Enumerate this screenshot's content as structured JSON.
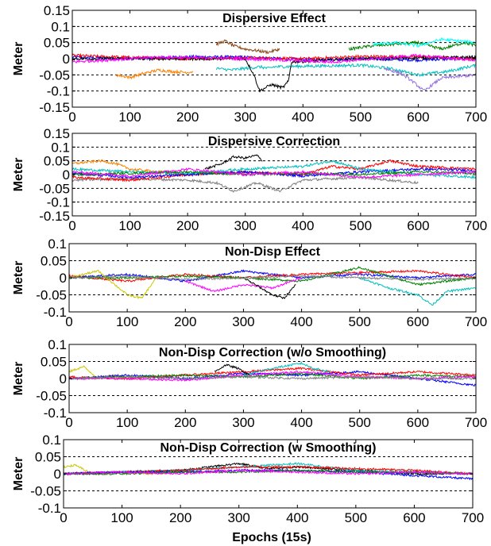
{
  "figure": {
    "xlabel": "Epochs (15s)"
  },
  "chart_data": [
    {
      "type": "line",
      "title": "Dispersive Effect",
      "ylabel": "Meter",
      "xlabel": "",
      "xlim": [
        0,
        700
      ],
      "ylim": [
        -0.15,
        0.15
      ],
      "xticks": [
        0,
        100,
        200,
        300,
        400,
        500,
        600,
        700
      ],
      "yticks": [
        -0.15,
        -0.1,
        -0.05,
        0,
        0.05,
        0.1,
        0.15
      ],
      "ytick_labels": [
        "-0.15",
        "-0.1",
        "-0.05",
        "0",
        "0.05",
        "0.1",
        "0.15"
      ],
      "dashed_y": [
        -0.1,
        -0.05,
        0.05,
        0.1
      ],
      "grid": "dashed horizontal lines",
      "series": [
        {
          "color": "#0000ff",
          "x": [
            0,
            100,
            200,
            300,
            400,
            500,
            600,
            700
          ],
          "y": [
            0.005,
            0.0,
            0.006,
            0.005,
            -0.003,
            0.0,
            -0.004,
            0.002
          ]
        },
        {
          "color": "#ff0000",
          "x": [
            0,
            100,
            200,
            300,
            400,
            500,
            600,
            700
          ],
          "y": [
            0.01,
            0.004,
            0.0,
            0.003,
            0.0,
            0.007,
            0.006,
            0.0
          ]
        },
        {
          "color": "#ff8000",
          "x": [
            75,
            100,
            125,
            150,
            175,
            200,
            210
          ],
          "y": [
            -0.05,
            -0.058,
            -0.045,
            -0.035,
            -0.04,
            -0.042,
            -0.04
          ]
        },
        {
          "color": "#8b4513",
          "x": [
            250,
            265,
            280,
            300,
            320,
            340,
            360
          ],
          "y": [
            0.045,
            0.055,
            0.04,
            0.03,
            0.025,
            0.02,
            0.03
          ]
        },
        {
          "color": "#00bfbf",
          "x": [
            250,
            275,
            300,
            325,
            340,
            350,
            500,
            550,
            600,
            650,
            700
          ],
          "y": [
            -0.03,
            -0.035,
            -0.03,
            -0.025,
            -0.03,
            -0.025,
            -0.02,
            -0.03,
            -0.05,
            -0.04,
            -0.02
          ]
        },
        {
          "color": "#000000",
          "x": [
            0,
            200,
            300,
            315,
            325,
            335,
            345,
            355,
            365,
            375,
            380,
            500,
            700
          ],
          "y": [
            0.0,
            0.0,
            0.0,
            -0.05,
            -0.1,
            -0.09,
            -0.08,
            -0.085,
            -0.09,
            -0.07,
            -0.01,
            0.0,
            0.005
          ]
        },
        {
          "color": "#008000",
          "x": [
            480,
            520,
            560,
            600,
            640,
            680,
            700
          ],
          "y": [
            0.03,
            0.04,
            0.045,
            0.05,
            0.03,
            0.05,
            0.04
          ]
        },
        {
          "color": "#00ffff",
          "x": [
            520,
            560,
            600,
            640,
            700
          ],
          "y": [
            0.045,
            0.05,
            0.04,
            0.06,
            0.05
          ]
        },
        {
          "color": "#9370db",
          "x": [
            540,
            570,
            590,
            610,
            640,
            700
          ],
          "y": [
            -0.03,
            -0.045,
            -0.07,
            -0.1,
            -0.06,
            -0.05
          ]
        },
        {
          "color": "#ff00ff",
          "x": [
            0,
            150,
            300,
            450,
            600,
            700
          ],
          "y": [
            -0.01,
            0.005,
            0.0,
            -0.01,
            0.01,
            -0.005
          ]
        }
      ]
    },
    {
      "type": "line",
      "title": "Dispersive Correction",
      "ylabel": "Meter",
      "xlabel": "",
      "xlim": [
        0,
        700
      ],
      "ylim": [
        -0.15,
        0.15
      ],
      "xticks": [
        0,
        100,
        200,
        300,
        400,
        500,
        600,
        700
      ],
      "yticks": [
        -0.15,
        -0.1,
        -0.05,
        0,
        0.05,
        0.1,
        0.15
      ],
      "ytick_labels": [
        "-0.15",
        "-0.1",
        "-0.05",
        "0",
        "0.05",
        "0.1",
        "0.15"
      ],
      "dashed_y": [
        -0.1,
        -0.05,
        0.05,
        0.1
      ],
      "grid": "dashed horizontal lines",
      "series": [
        {
          "color": "#ff8000",
          "x": [
            0,
            25,
            50,
            75,
            100,
            150,
            200
          ],
          "y": [
            0.04,
            0.045,
            0.05,
            0.04,
            0.02,
            0.01,
            0.0
          ]
        },
        {
          "color": "#000000",
          "x": [
            230,
            260,
            280,
            300,
            320,
            330
          ],
          "y": [
            0.02,
            0.04,
            0.065,
            0.06,
            0.07,
            0.05
          ]
        },
        {
          "color": "#808080",
          "x": [
            0,
            100,
            200,
            250,
            280,
            320,
            360,
            400,
            500,
            600
          ],
          "y": [
            -0.02,
            -0.015,
            -0.02,
            -0.03,
            -0.06,
            -0.03,
            -0.06,
            -0.02,
            -0.01,
            -0.03
          ]
        },
        {
          "color": "#ff0000",
          "x": [
            0,
            100,
            200,
            300,
            400,
            450,
            500,
            550,
            600,
            700
          ],
          "y": [
            -0.01,
            -0.02,
            0.0,
            0.01,
            0.0,
            0.03,
            0.02,
            0.05,
            0.03,
            0.02
          ]
        },
        {
          "color": "#0000ff",
          "x": [
            0,
            100,
            200,
            300,
            400,
            500,
            600,
            700
          ],
          "y": [
            0.005,
            -0.01,
            0.0,
            0.01,
            -0.005,
            0.01,
            0.02,
            0.015
          ]
        },
        {
          "color": "#00bfbf",
          "x": [
            0,
            100,
            200,
            300,
            400,
            450,
            500,
            600,
            700
          ],
          "y": [
            0.02,
            0.01,
            0.005,
            0.02,
            0.03,
            0.05,
            0.02,
            0.0,
            -0.01
          ]
        },
        {
          "color": "#008000",
          "x": [
            0,
            100,
            200,
            300,
            400,
            500,
            600,
            700
          ],
          "y": [
            0.0,
            0.005,
            0.01,
            0.0,
            0.005,
            0.0,
            0.01,
            0.005
          ]
        },
        {
          "color": "#ff00ff",
          "x": [
            0,
            100,
            200,
            300,
            400,
            500,
            600,
            700
          ],
          "y": [
            0.01,
            -0.005,
            0.02,
            0.0,
            0.01,
            -0.01,
            0.0,
            0.01
          ]
        }
      ]
    },
    {
      "type": "line",
      "title": "Non-Disp Effect",
      "ylabel": "Meter",
      "xlabel": "",
      "xlim": [
        0,
        700
      ],
      "ylim": [
        -0.1,
        0.1
      ],
      "xticks": [
        0,
        100,
        200,
        300,
        400,
        500,
        600,
        700
      ],
      "yticks": [
        -0.1,
        -0.05,
        0,
        0.05,
        0.1
      ],
      "ytick_labels": [
        "-0.1",
        "-0.05",
        "0",
        "0.05",
        "0.1"
      ],
      "dashed_y": [
        -0.05,
        0.05
      ],
      "grid": "dashed horizontal lines",
      "series": [
        {
          "color": "#0000ff",
          "x": [
            0,
            100,
            200,
            300,
            400,
            500,
            600,
            700
          ],
          "y": [
            0.0,
            0.01,
            -0.01,
            0.02,
            0.0,
            0.01,
            0.0,
            0.01
          ]
        },
        {
          "color": "#ff0000",
          "x": [
            0,
            100,
            200,
            300,
            400,
            500,
            600,
            700
          ],
          "y": [
            0.005,
            -0.01,
            0.01,
            0.0,
            0.01,
            0.015,
            0.02,
            0.0
          ]
        },
        {
          "color": "#008000",
          "x": [
            0,
            100,
            200,
            300,
            400,
            500,
            600,
            700
          ],
          "y": [
            0.0,
            0.0,
            0.005,
            0.0,
            -0.01,
            0.03,
            -0.02,
            0.0
          ]
        },
        {
          "color": "#c8c800",
          "x": [
            0,
            50,
            100,
            125,
            150
          ],
          "y": [
            0.0,
            0.02,
            -0.05,
            -0.06,
            0.0
          ]
        },
        {
          "color": "#ff00ff",
          "x": [
            200,
            250,
            300,
            350,
            400
          ],
          "y": [
            -0.01,
            -0.04,
            -0.02,
            -0.03,
            0.0
          ]
        },
        {
          "color": "#00bfbf",
          "x": [
            500,
            550,
            600,
            625,
            650,
            700
          ],
          "y": [
            0.0,
            -0.03,
            -0.05,
            -0.08,
            -0.04,
            -0.03
          ]
        },
        {
          "color": "#000000",
          "x": [
            300,
            330,
            350,
            370,
            390
          ],
          "y": [
            0.0,
            -0.03,
            -0.05,
            -0.06,
            -0.02
          ]
        },
        {
          "color": "#808080",
          "x": [
            0,
            100,
            200,
            300,
            400,
            500,
            600,
            700
          ],
          "y": [
            0.0,
            0.005,
            -0.005,
            0.0,
            0.005,
            0.0,
            -0.005,
            0.0
          ]
        }
      ]
    },
    {
      "type": "line",
      "title": "Non-Disp Correction (w/o Smoothing)",
      "ylabel": "Meter",
      "xlabel": "",
      "xlim": [
        0,
        700
      ],
      "ylim": [
        -0.1,
        0.1
      ],
      "xticks": [
        0,
        100,
        200,
        300,
        400,
        500,
        600,
        700
      ],
      "yticks": [
        -0.1,
        -0.05,
        0,
        0.05,
        0.1
      ],
      "ytick_labels": [
        "-0.1",
        "-0.05",
        "0",
        "0.05",
        "0.1"
      ],
      "dashed_y": [
        -0.05,
        0.05
      ],
      "grid": "dashed horizontal lines",
      "series": [
        {
          "color": "#c8c800",
          "x": [
            0,
            25,
            50,
            75,
            100
          ],
          "y": [
            0.02,
            0.035,
            0.0,
            0.01,
            0.0
          ]
        },
        {
          "color": "#0000ff",
          "x": [
            0,
            100,
            200,
            300,
            400,
            500,
            600,
            650,
            700
          ],
          "y": [
            0.0,
            0.01,
            0.0,
            0.015,
            0.01,
            0.02,
            0.0,
            -0.01,
            -0.02
          ]
        },
        {
          "color": "#ff0000",
          "x": [
            0,
            100,
            200,
            300,
            400,
            500,
            600,
            700
          ],
          "y": [
            0.005,
            0.0,
            0.01,
            0.02,
            0.03,
            0.01,
            0.02,
            0.01
          ]
        },
        {
          "color": "#008000",
          "x": [
            0,
            100,
            200,
            300,
            400,
            500,
            600,
            700
          ],
          "y": [
            0.0,
            0.005,
            0.01,
            0.005,
            0.015,
            0.0,
            0.01,
            0.005
          ]
        },
        {
          "color": "#ff00ff",
          "x": [
            0,
            100,
            200,
            300,
            400,
            500,
            600,
            700
          ],
          "y": [
            0.0,
            0.0,
            -0.005,
            0.01,
            0.02,
            0.005,
            0.0,
            0.005
          ]
        },
        {
          "color": "#00bfbf",
          "x": [
            300,
            350,
            400,
            420,
            450
          ],
          "y": [
            0.01,
            0.03,
            0.045,
            0.03,
            0.02
          ]
        },
        {
          "color": "#000000",
          "x": [
            250,
            270,
            290,
            310
          ],
          "y": [
            0.02,
            0.04,
            0.03,
            0.01
          ]
        },
        {
          "color": "#808080",
          "x": [
            0,
            100,
            200,
            300,
            400,
            500,
            600,
            700
          ],
          "y": [
            0.0,
            0.005,
            0.0,
            0.005,
            0.0,
            0.005,
            0.0,
            0.0
          ]
        }
      ]
    },
    {
      "type": "line",
      "title": "Non-Disp Correction (w Smoothing)",
      "ylabel": "Meter",
      "xlabel": "Epochs (15s)",
      "xlim": [
        0,
        700
      ],
      "ylim": [
        -0.1,
        0.1
      ],
      "xticks": [
        0,
        100,
        200,
        300,
        400,
        500,
        600,
        700
      ],
      "yticks": [
        -0.1,
        -0.05,
        0,
        0.05,
        0.1
      ],
      "ytick_labels": [
        "-0.1",
        "-0.05",
        "0",
        "0.05",
        "0.1"
      ],
      "dashed_y": [
        -0.05,
        0.05
      ],
      "grid": "dashed horizontal lines",
      "series": [
        {
          "color": "#c8c800",
          "x": [
            0,
            20,
            50,
            100,
            150,
            200
          ],
          "y": [
            0.02,
            0.025,
            0.0,
            0.005,
            0.0,
            0.005
          ]
        },
        {
          "color": "#000000",
          "x": [
            0,
            100,
            200,
            250,
            300,
            350,
            400,
            500,
            600,
            700
          ],
          "y": [
            0.0,
            0.005,
            0.01,
            0.02,
            0.03,
            0.015,
            0.02,
            0.01,
            0.0,
            0.0
          ]
        },
        {
          "color": "#00bfbf",
          "x": [
            0,
            100,
            200,
            300,
            400,
            450,
            500,
            600,
            700
          ],
          "y": [
            0.0,
            0.005,
            0.01,
            0.02,
            0.03,
            0.02,
            0.01,
            0.005,
            0.0
          ]
        },
        {
          "color": "#ff0000",
          "x": [
            0,
            100,
            200,
            300,
            400,
            500,
            600,
            700
          ],
          "y": [
            0.0,
            0.005,
            0.01,
            0.02,
            0.02,
            0.015,
            0.01,
            0.0
          ]
        },
        {
          "color": "#0000ff",
          "x": [
            0,
            100,
            200,
            300,
            400,
            500,
            600,
            650,
            700
          ],
          "y": [
            0.0,
            0.005,
            0.005,
            0.01,
            0.01,
            0.005,
            -0.005,
            -0.01,
            -0.015
          ]
        },
        {
          "color": "#008000",
          "x": [
            0,
            100,
            200,
            300,
            400,
            500,
            600,
            700
          ],
          "y": [
            0.0,
            0.0,
            0.005,
            0.005,
            0.01,
            0.005,
            0.005,
            0.0
          ]
        },
        {
          "color": "#ff00ff",
          "x": [
            0,
            100,
            200,
            300,
            400,
            500,
            600,
            700
          ],
          "y": [
            0.0,
            0.005,
            0.0,
            0.01,
            0.005,
            0.0,
            0.005,
            0.0
          ]
        }
      ]
    }
  ]
}
